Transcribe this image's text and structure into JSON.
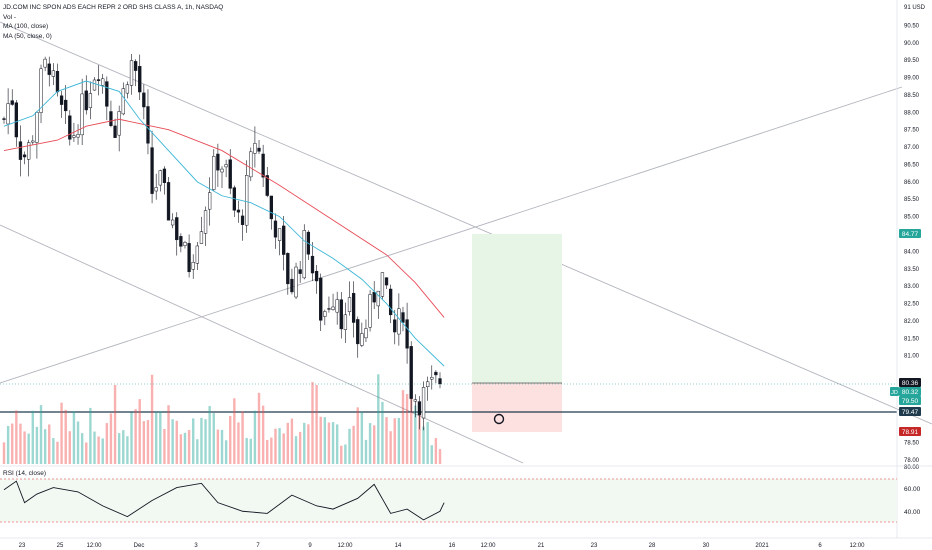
{
  "legend": {
    "title": "JD.COM INC SPON ADS EACH REPR 2 ORD SHS CLASS A, 1h, NASDAQ",
    "vol": "Vol -",
    "ma100": "MA (100, close)",
    "ma50": "MA (50, close, 0)"
  },
  "rsi": {
    "label": "RSI (14, close)",
    "ticks": [
      "60.00",
      "40.00"
    ]
  },
  "price_axis": {
    "currency": "91 USD",
    "ticks": [
      "90.50",
      "90.00",
      "89.50",
      "89.00",
      "88.50",
      "88.00",
      "87.50",
      "87.00",
      "86.50",
      "86.00",
      "85.50",
      "85.00",
      "84.50",
      "84.00",
      "83.50",
      "83.00",
      "82.50",
      "82.00",
      "81.50",
      "81.00",
      "78.50",
      "78.00"
    ],
    "bottom_tick": "80.00"
  },
  "markers": {
    "target": "84.77",
    "ticker": "JD",
    "ticker_price": "80.32",
    "ticker_sub": "79.50",
    "entry": "80.36",
    "line": "79.47",
    "stop": "78.91"
  },
  "time_axis": [
    "23",
    "25",
    "12:00",
    "Dec",
    "3",
    "7",
    "9",
    "12:00",
    "14",
    "16",
    "12:00",
    "21",
    "23",
    "28",
    "30",
    "2021",
    "6",
    "12:00"
  ],
  "colors": {
    "up": "#26a69a",
    "down": "#ef5350",
    "ma50": "#3cb6d8",
    "ma100": "#e74c57",
    "profit": "#e6f5e6",
    "loss": "#fde0e0",
    "trend": "#b2b5be"
  },
  "chart_data": {
    "type": "candlestick",
    "symbol": "JD.COM INC SPON ADS EACH REPR 2 ORD SHS CLASS A",
    "interval": "1h",
    "exchange": "NASDAQ",
    "ylim": [
      78,
      91
    ],
    "close_path": [
      87.8,
      88.6,
      87.0,
      86.7,
      87.5,
      88.9,
      89.6,
      88.4,
      87.9,
      87.1,
      87.8,
      88.3,
      89.1,
      89.4,
      88.2,
      87.6,
      88.4,
      89.5,
      89.1,
      87.7,
      85.7,
      86.1,
      85.3,
      84.8,
      84.2,
      83.6,
      84.4,
      85.1,
      86.1,
      86.7,
      86.3,
      85.2,
      84.8,
      86.0,
      87.3,
      86.4,
      85.0,
      84.7,
      83.4,
      83.0,
      83.7,
      84.5,
      83.1,
      82.1,
      82.6,
      82.9,
      81.8,
      82.4,
      81.3,
      81.9,
      82.7,
      83.5,
      82.3,
      81.6,
      82.4,
      80.1,
      79.7,
      79.9,
      80.1,
      80.3
    ],
    "volume_scale": [
      0.25,
      0.45,
      0.6,
      0.35,
      0.5,
      0.7,
      0.4,
      0.3,
      0.55,
      0.45,
      0.65,
      0.35,
      0.5,
      0.4,
      0.6,
      0.75,
      0.3,
      0.45,
      0.55,
      0.4,
      0.9,
      0.6,
      0.5,
      0.45,
      0.35,
      0.55,
      0.4,
      0.5,
      0.7,
      0.45,
      0.35,
      0.6,
      0.5,
      0.4,
      0.55,
      0.8,
      0.4,
      0.3,
      0.5,
      0.45,
      0.35,
      0.6,
      0.9,
      0.55,
      0.4,
      0.5,
      0.3,
      0.45,
      0.6,
      0.4,
      0.35,
      0.8,
      0.5,
      0.45,
      0.7,
      0.95,
      0.5,
      0.4,
      0.3,
      0.2
    ],
    "ma50": [
      [
        0,
        87.6
      ],
      [
        7,
        87.9
      ],
      [
        13,
        88.6
      ],
      [
        20,
        88.9
      ],
      [
        28,
        88.6
      ],
      [
        33,
        87.8
      ],
      [
        40,
        86.9
      ],
      [
        47,
        86.0
      ],
      [
        53,
        85.6
      ],
      [
        60,
        85.4
      ],
      [
        67,
        85.0
      ],
      [
        73,
        84.3
      ],
      [
        80,
        83.8
      ],
      [
        87,
        83.2
      ],
      [
        93,
        82.5
      ],
      [
        100,
        81.5
      ],
      [
        107,
        80.7
      ]
    ],
    "ma100": [
      [
        0,
        86.9
      ],
      [
        13,
        87.2
      ],
      [
        20,
        87.6
      ],
      [
        28,
        87.8
      ],
      [
        40,
        87.5
      ],
      [
        53,
        86.9
      ],
      [
        67,
        85.9
      ],
      [
        80,
        84.9
      ],
      [
        93,
        83.9
      ],
      [
        100,
        83.1
      ],
      [
        107,
        82.1
      ]
    ],
    "rsi_path": [
      [
        0,
        60
      ],
      [
        3,
        68
      ],
      [
        5,
        48
      ],
      [
        8,
        56
      ],
      [
        12,
        62
      ],
      [
        18,
        58
      ],
      [
        24,
        45
      ],
      [
        30,
        35
      ],
      [
        36,
        50
      ],
      [
        42,
        62
      ],
      [
        48,
        66
      ],
      [
        52,
        48
      ],
      [
        58,
        40
      ],
      [
        64,
        38
      ],
      [
        70,
        55
      ],
      [
        76,
        45
      ],
      [
        80,
        42
      ],
      [
        86,
        52
      ],
      [
        90,
        65
      ],
      [
        94,
        38
      ],
      [
        98,
        42
      ],
      [
        102,
        32
      ],
      [
        106,
        40
      ],
      [
        107,
        48
      ]
    ],
    "position": {
      "entry": 80.36,
      "target": 84.77,
      "stop": 78.91
    },
    "horizontal_line": 79.47
  }
}
